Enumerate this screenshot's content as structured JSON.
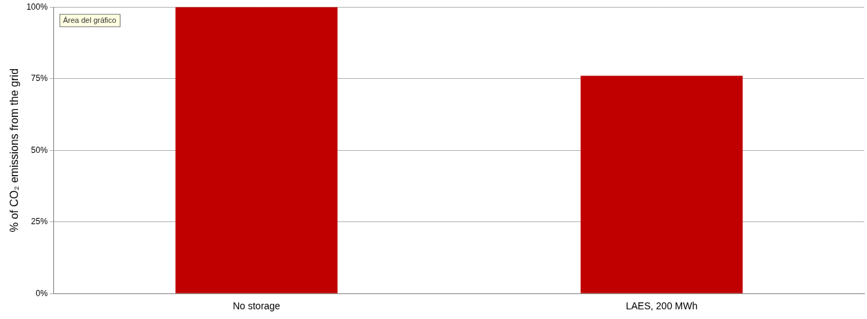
{
  "chart_data": {
    "type": "bar",
    "y_label": "% of CO₂ emissions from the grid",
    "annotation": "Área del gráfico",
    "categories": [
      "No storage",
      "LAES, 200 MWh"
    ],
    "values": [
      100,
      76
    ],
    "color": "#c00000",
    "ylim": [
      0,
      100
    ],
    "yticks": [
      {
        "value": 0,
        "label": "0%"
      },
      {
        "value": 25,
        "label": "25%"
      },
      {
        "value": 50,
        "label": "50%"
      },
      {
        "value": 75,
        "label": "75%"
      },
      {
        "value": 100,
        "label": "100%"
      }
    ],
    "grid": true
  }
}
